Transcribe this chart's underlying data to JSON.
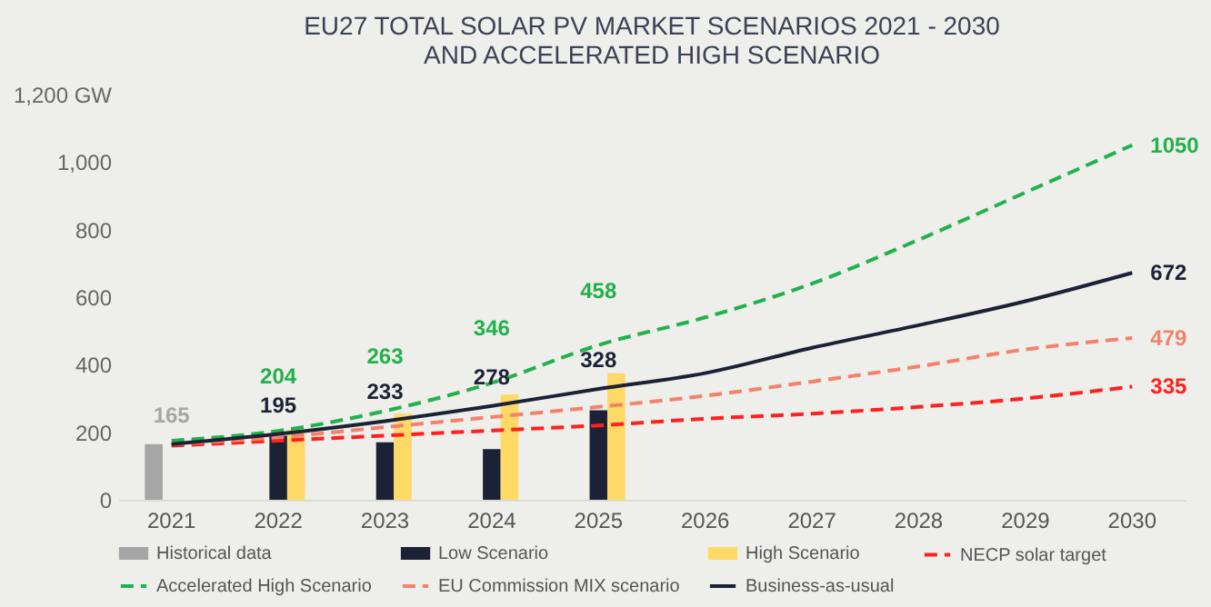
{
  "chart_data": {
    "type": "bar",
    "title": "EU27 TOTAL SOLAR PV MARKET SCENARIOS 2021 - 2030 AND ACCELERATED HIGH SCENARIO",
    "categories": [
      "2021",
      "2022",
      "2023",
      "2024",
      "2025",
      "2026",
      "2027",
      "2028",
      "2029",
      "2030"
    ],
    "series": [
      {
        "name": "Historical data",
        "color": "#a6a6a6",
        "values": [
          165,
          null,
          null,
          null,
          null,
          null,
          null,
          null,
          null,
          null
        ],
        "value_labels": [
          "165",
          null,
          null,
          null,
          null,
          null,
          null,
          null,
          null,
          null
        ]
      },
      {
        "name": "Low Scenario",
        "color": "#1b2236",
        "values": [
          null,
          190,
          170,
          150,
          265,
          null,
          null,
          null,
          null,
          null
        ]
      },
      {
        "name": "High Scenario",
        "color": "#ffd966",
        "values": [
          null,
          208,
          255,
          312,
          375,
          null,
          null,
          null,
          null,
          null
        ]
      },
      {
        "name": "NECP solar target",
        "type": "line",
        "line_style": "dashed",
        "color": "#ff2020",
        "values": [
          160,
          175,
          190,
          205,
          220,
          240,
          255,
          275,
          300,
          335
        ],
        "value_labels": [
          null,
          null,
          null,
          null,
          null,
          null,
          null,
          null,
          null,
          "335"
        ]
      },
      {
        "name": "Accelerated High Scenario",
        "type": "line",
        "line_style": "dashed",
        "color": "#22b14c",
        "values": [
          175,
          204,
          263,
          346,
          458,
          540,
          640,
          770,
          910,
          1050
        ],
        "value_labels": [
          null,
          "204",
          "263",
          "346",
          "458",
          null,
          null,
          null,
          null,
          "1050"
        ]
      },
      {
        "name": "EU Commission MIX scenario",
        "type": "line",
        "line_style": "dashed",
        "color": "#f4826a",
        "values": [
          165,
          185,
          215,
          245,
          275,
          308,
          350,
          395,
          445,
          479
        ],
        "value_labels": [
          null,
          null,
          null,
          null,
          null,
          null,
          null,
          null,
          null,
          "479"
        ]
      },
      {
        "name": "Business-as-usual",
        "type": "line",
        "line_style": "solid",
        "color": "#1b2236",
        "values": [
          165,
          195,
          233,
          278,
          328,
          375,
          450,
          517,
          588,
          672
        ],
        "value_labels": [
          null,
          "195",
          "233",
          "278",
          "328",
          null,
          null,
          null,
          null,
          "672"
        ]
      }
    ],
    "ylim": [
      0,
      1200
    ],
    "yticks": [
      0,
      200,
      400,
      600,
      800,
      {
        "value": 1000,
        "label": "1,000"
      },
      {
        "value": 1200,
        "label": "1,200 GW"
      }
    ],
    "grid": false,
    "legend": "bottom"
  }
}
